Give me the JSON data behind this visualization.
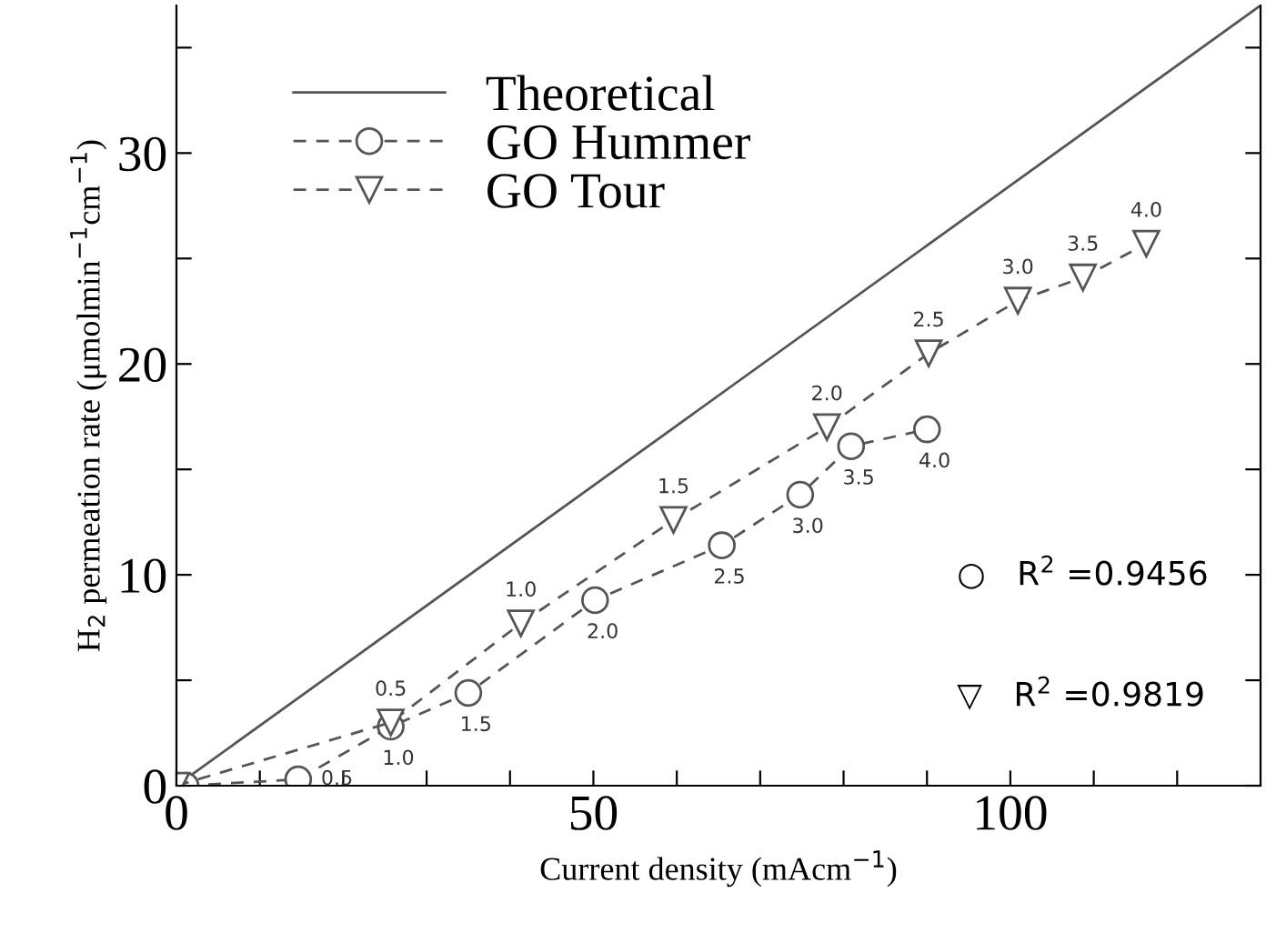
{
  "chart_data": {
    "type": "line",
    "xlabel": "Current density (mAcm$^{−1}$)",
    "ylabel": "H$_{2}$ permeation rate (μmolmin$^{−1}$cm$^{−1}$)",
    "xlim": [
      0,
      130
    ],
    "ylim": [
      0,
      37
    ],
    "xticks": [
      0,
      {
        "value": 10,
        "label": null
      },
      {
        "value": 20,
        "label": null
      },
      {
        "value": 30,
        "label": null
      },
      {
        "value": 40,
        "label": null
      },
      50,
      {
        "value": 60,
        "label": null
      },
      {
        "value": 70,
        "label": null
      },
      {
        "value": 80,
        "label": null
      },
      {
        "value": 90,
        "label": null
      },
      100,
      {
        "value": 110,
        "label": null
      },
      {
        "value": 120,
        "label": null
      }
    ],
    "yticks": [
      0,
      {
        "value": 5,
        "label": null
      },
      10,
      {
        "value": 15,
        "label": null
      },
      20,
      {
        "value": 25,
        "label": null
      },
      30,
      {
        "value": 35,
        "label": null
      }
    ],
    "legend": "top left",
    "series": [
      {
        "name": "Theoretical",
        "color": "#555555",
        "line_style": "solid",
        "marker": "none",
        "x": [
          0,
          130
        ],
        "values": [
          0,
          37
        ]
      },
      {
        "name": "GO Hummer",
        "color": "#555555",
        "line_style": "dashed",
        "marker": "circle",
        "x": [
          1.1,
          14.6,
          25.7,
          35,
          50.2,
          65.4,
          74.8,
          80.9,
          90
        ],
        "values": [
          0,
          0.3,
          2.8,
          4.4,
          8.8,
          11.4,
          13.8,
          16.1,
          16.9
        ]
      },
      {
        "name": "GO Tour",
        "color": "#555555",
        "line_style": "dashed",
        "marker": "triangle",
        "x": [
          0,
          25.7,
          41.3,
          59.6,
          78,
          90.2,
          100.9,
          108.7,
          116.3
        ],
        "values": [
          0,
          3.0,
          7.7,
          12.6,
          17.0,
          20.5,
          23.0,
          24.1,
          25.7
        ]
      }
    ],
    "annotations": [
      {
        "text": "0.5",
        "x": 14.6,
        "y": 0.3
      },
      {
        "text": "1.0",
        "x": 25.7,
        "y": 2.8
      },
      {
        "text": "1.5",
        "x": 35,
        "y": 4.4
      },
      {
        "text": "2.0",
        "x": 50.2,
        "y": 8.8
      },
      {
        "text": "2.5",
        "x": 65.4,
        "y": 11.4
      },
      {
        "text": "3.0",
        "x": 74.8,
        "y": 13.8
      },
      {
        "text": "3.5",
        "x": 80.9,
        "y": 16.1
      },
      {
        "text": "4.0",
        "x": 90,
        "y": 16.9
      },
      {
        "text": "0.5",
        "x": 25.7,
        "y": 3.0
      },
      {
        "text": "1.0",
        "x": 41.3,
        "y": 7.7
      },
      {
        "text": "1.5",
        "x": 59.6,
        "y": 12.6
      },
      {
        "text": "2.0",
        "x": 78,
        "y": 17.0
      },
      {
        "text": "2.5",
        "x": 90.2,
        "y": 20.5
      },
      {
        "text": "3.0",
        "x": 100.9,
        "y": 23.0
      },
      {
        "text": "3.5",
        "x": 108.7,
        "y": 24.1
      },
      {
        "text": "4.0",
        "x": 116.3,
        "y": 25.7
      },
      "○   R$^{2}$ =0.9456",
      "▽   R$^{2}$ =0.9819"
    ]
  }
}
